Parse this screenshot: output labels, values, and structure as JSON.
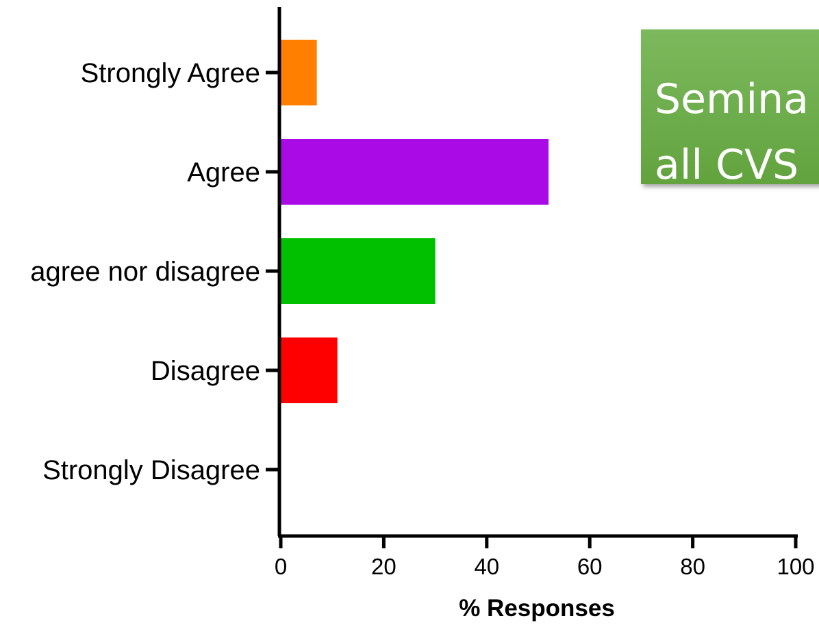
{
  "chart_data": {
    "type": "bar",
    "orientation": "horizontal",
    "categories": [
      "Strongly Agree",
      "Agree",
      "Neither agree nor disagree",
      "Disagree",
      "Strongly Disagree"
    ],
    "categories_visible": [
      "Strongly Agree",
      "Agree",
      "agree nor disagree",
      "Disagree",
      "Strongly Disagree"
    ],
    "values": [
      7,
      52,
      30,
      11,
      0
    ],
    "colors": [
      "#ff8000",
      "#aa0ae6",
      "#00c000",
      "#ff0000",
      "#888888"
    ],
    "xlabel": "% Responses",
    "ylabel": "",
    "title": "",
    "xlim": [
      0,
      100
    ],
    "xticks": [
      0,
      20,
      40,
      60,
      80,
      100
    ],
    "xtick_labels": [
      "0",
      "20",
      "40",
      "60",
      "80",
      "100"
    ],
    "grid": false,
    "legend": "none"
  },
  "overlay": {
    "line1": "Semina",
    "line2": "all CVS",
    "color": "#6aad48"
  }
}
